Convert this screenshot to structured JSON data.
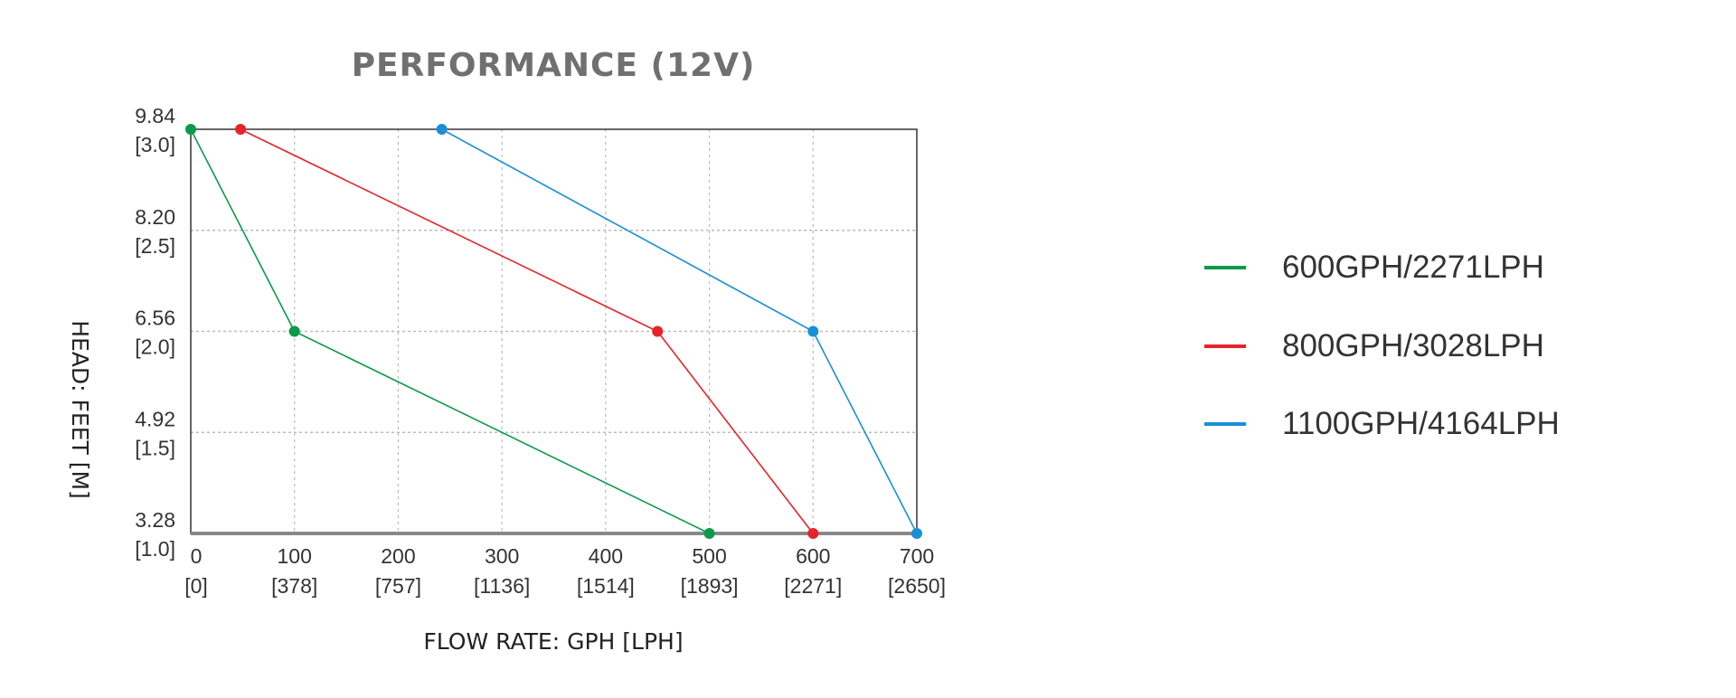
{
  "chart_data": {
    "type": "line",
    "title": "PERFORMANCE (12V)",
    "xlabel": "FLOW RATE: GPH [LPH]",
    "ylabel": "HEAD: FEET [M]",
    "xlim": [
      0,
      700
    ],
    "ylim": [
      1.0,
      3.0
    ],
    "grid": true,
    "legend_position": "right",
    "x_ticks": [
      {
        "value": 0,
        "label": "0",
        "sub": "[0]"
      },
      {
        "value": 100,
        "label": "100",
        "sub": "[378]"
      },
      {
        "value": 200,
        "label": "200",
        "sub": "[757]"
      },
      {
        "value": 300,
        "label": "300",
        "sub": "[1136]"
      },
      {
        "value": 400,
        "label": "400",
        "sub": "[1514]"
      },
      {
        "value": 500,
        "label": "500",
        "sub": "[1893]"
      },
      {
        "value": 600,
        "label": "600",
        "sub": "[2271]"
      },
      {
        "value": 700,
        "label": "700",
        "sub": "[2650]"
      }
    ],
    "y_ticks": [
      {
        "value": 3.0,
        "label": "9.84",
        "sub": "[3.0]"
      },
      {
        "value": 2.5,
        "label": "8.20",
        "sub": "[2.5]"
      },
      {
        "value": 2.0,
        "label": "6.56",
        "sub": "[2.0]"
      },
      {
        "value": 1.5,
        "label": "4.92",
        "sub": "[1.5]"
      },
      {
        "value": 1.0,
        "label": "3.28",
        "sub": "[1.0]"
      }
    ],
    "series": [
      {
        "name": "600GPH/2271LPH",
        "color": "#0b9a4a",
        "points": [
          [
            0,
            3.0
          ],
          [
            100,
            2.0
          ],
          [
            500,
            1.0
          ]
        ]
      },
      {
        "name": "800GPH/3028LPH",
        "color": "#e6232b",
        "points": [
          [
            48,
            3.0
          ],
          [
            450,
            2.0
          ],
          [
            600,
            1.0
          ]
        ]
      },
      {
        "name": "1100GPH/4164LPH",
        "color": "#1b8fd6",
        "points": [
          [
            242,
            3.0
          ],
          [
            600,
            2.0
          ],
          [
            700,
            1.0
          ]
        ]
      }
    ]
  }
}
